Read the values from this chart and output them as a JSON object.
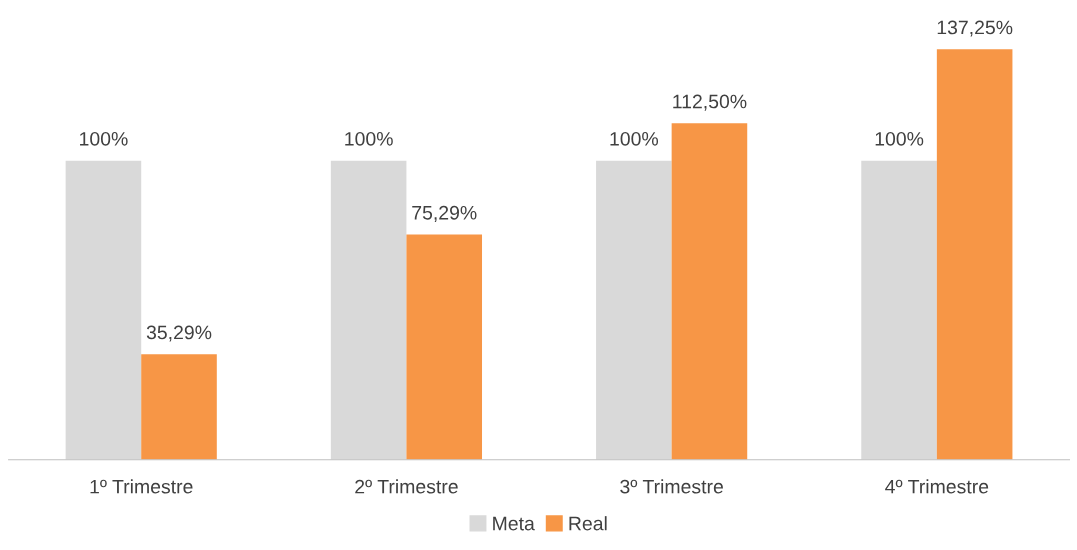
{
  "chart_data": {
    "type": "bar",
    "categories": [
      "1º Trimestre",
      "2º Trimestre",
      "3º Trimestre",
      "4º Trimestre"
    ],
    "series": [
      {
        "name": "Meta",
        "color": "#d9d9d9",
        "values": [
          100,
          100,
          100,
          100
        ],
        "value_labels": [
          "100%",
          "100%",
          "100%",
          "100%"
        ]
      },
      {
        "name": "Real",
        "color": "#f79646",
        "values": [
          35.29,
          75.29,
          112.5,
          137.25
        ],
        "value_labels": [
          "35,29%",
          "75,29%",
          "112,50%",
          "137,25%"
        ]
      }
    ],
    "grid": false,
    "legend": "bottom"
  }
}
